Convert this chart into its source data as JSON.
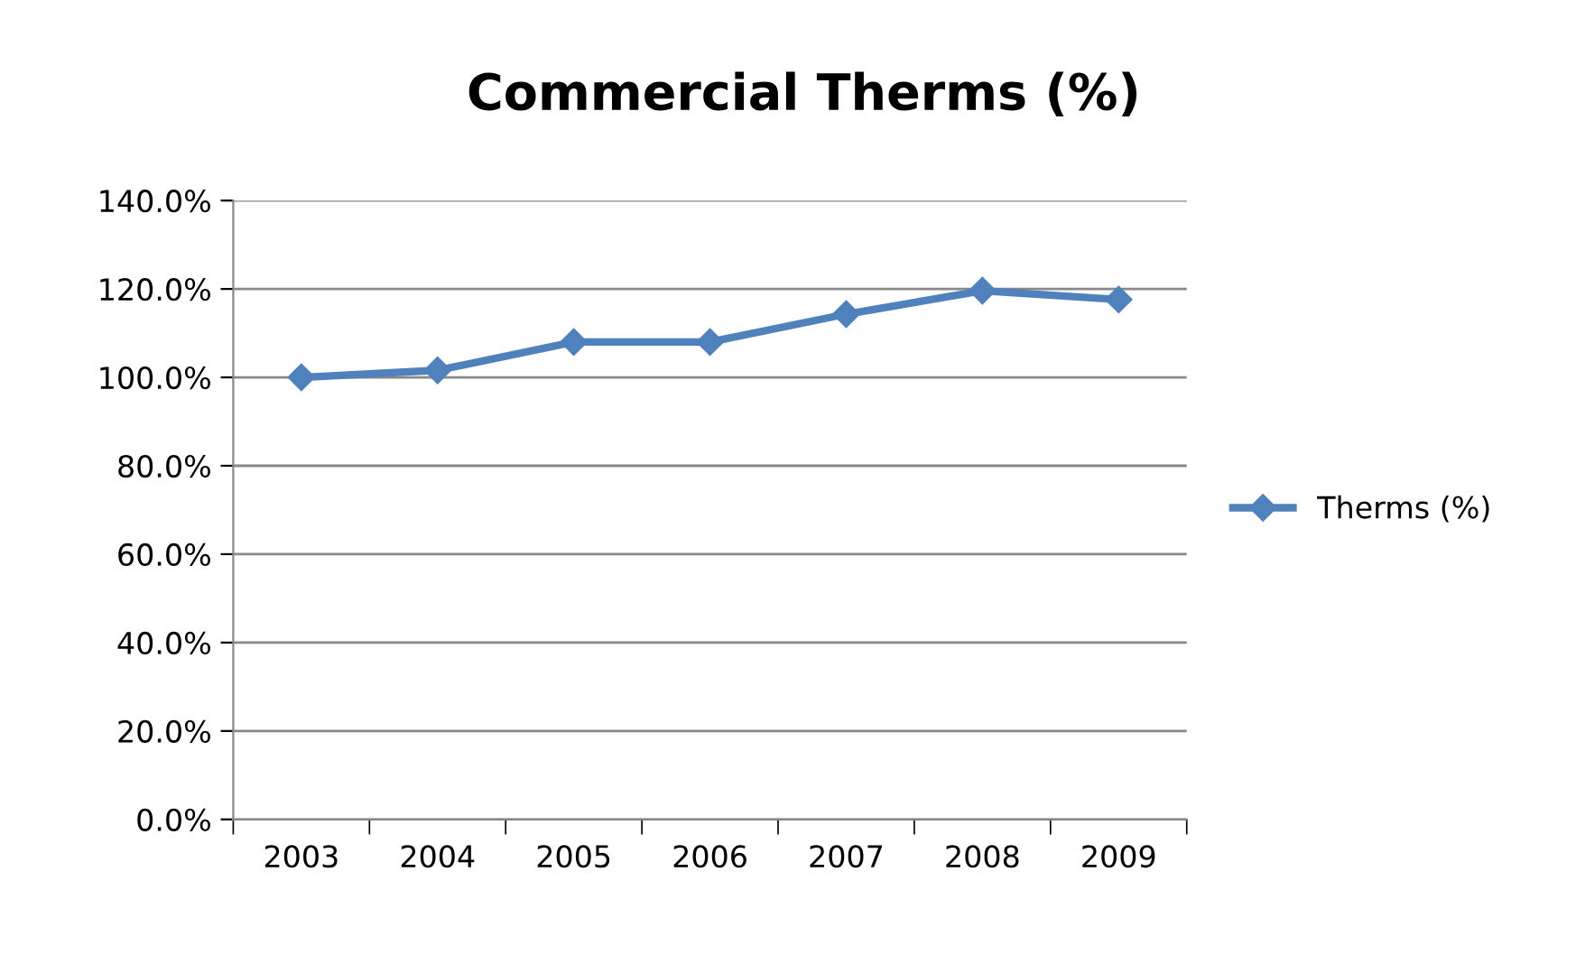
{
  "chart_data": {
    "type": "line",
    "title": "Commercial Therms (%)",
    "categories": [
      "2003",
      "2004",
      "2005",
      "2006",
      "2007",
      "2008",
      "2009"
    ],
    "series": [
      {
        "name": "Therms (%)",
        "color": "#4f81bd",
        "values": [
          100,
          101.6,
          108,
          108,
          114.3,
          119.6,
          117.6
        ]
      }
    ],
    "ylim": [
      0,
      140
    ],
    "yticks": [
      {
        "value": 0,
        "label": "0.0%"
      },
      {
        "value": 20,
        "label": "20.0%"
      },
      {
        "value": 40,
        "label": "40.0%"
      },
      {
        "value": 60,
        "label": "60.0%"
      },
      {
        "value": 80,
        "label": "80.0%"
      },
      {
        "value": 100,
        "label": "100.0%"
      },
      {
        "value": 120,
        "label": "120.0%"
      },
      {
        "value": 140,
        "label": "140.0%"
      }
    ],
    "grid": "y",
    "legend": "right",
    "marker": "diamond",
    "line_style": "solid"
  }
}
